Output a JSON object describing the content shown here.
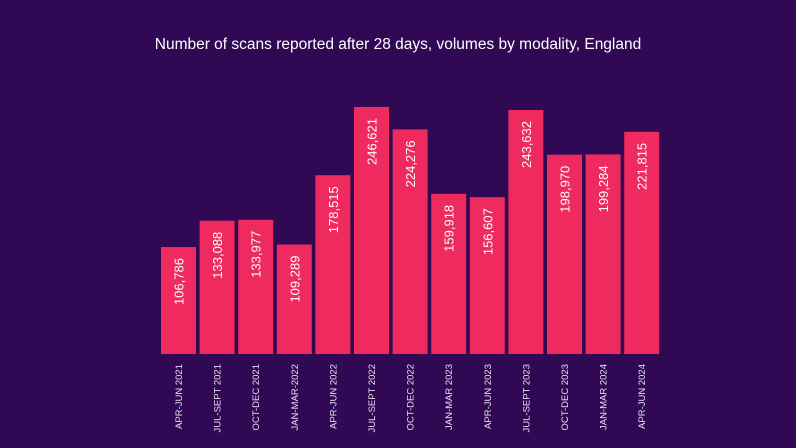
{
  "chart_data": {
    "type": "bar",
    "title": "Number of scans reported after 28 days, volumes by modality, England",
    "categories": [
      "APR-JUN 2021",
      "JUL-SEPT 2021",
      "OCT-DEC 2021",
      "JAN-MAR-2022",
      "APR-JUN 2022",
      "JUL-SEPT 2022",
      "OCT-DEC 2022",
      "JAN-MAR 2023",
      "APR-JUN 2023",
      "JUL-SEPT 2023",
      "OCT-DEC 2023",
      "JAN-MAR 2024",
      "APR-JUN 2024"
    ],
    "values": [
      106786,
      133088,
      133977,
      109289,
      178515,
      246621,
      224276,
      159918,
      156607,
      243632,
      198970,
      199284,
      221815
    ],
    "value_labels": [
      "106,786",
      "133,088",
      "133,977",
      "109,289",
      "178,515",
      "246,621",
      "224,276",
      "159,918",
      "156,607",
      "243,632",
      "198,970",
      "199,284",
      "221,815"
    ],
    "ylim": [
      0,
      250000
    ],
    "grid": false,
    "xlabel": "",
    "ylabel": "",
    "colors": {
      "background": "#300854",
      "bar": "#ee2a5e",
      "text": "#ffffff"
    }
  }
}
